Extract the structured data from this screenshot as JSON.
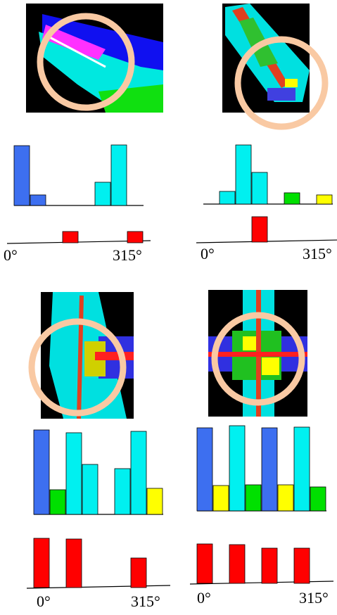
{
  "bar_colors": {
    "blue": "#3d6ff0",
    "cyan": "#00f0f0",
    "green": "#00e000",
    "yellow": "#ffff00",
    "red": "#ff0000"
  },
  "panels": [
    {
      "label_start": "0°",
      "label_end": "315°",
      "orientation_hist": {
        "heights": [
          85,
          15,
          0,
          0,
          0,
          33,
          86,
          0
        ],
        "colors": [
          "blue",
          "blue",
          "blue",
          "cyan",
          "cyan",
          "cyan",
          "cyan",
          "cyan"
        ]
      },
      "red_hist": {
        "heights": [
          0,
          0,
          0,
          16,
          0,
          0,
          0,
          16
        ]
      }
    },
    {
      "label_start": "0°",
      "label_end": "315°",
      "orientation_hist": {
        "heights": [
          0,
          18,
          84,
          45,
          0,
          16,
          0,
          13
        ],
        "colors": [
          "cyan",
          "cyan",
          "cyan",
          "cyan",
          "cyan",
          "green",
          "green",
          "yellow"
        ]
      },
      "red_hist": {
        "heights": [
          0,
          0,
          0,
          36,
          0,
          0,
          0,
          0
        ]
      }
    },
    {
      "label_start": "0°",
      "label_end": "315°",
      "orientation_hist": {
        "heights": [
          120,
          35,
          116,
          71,
          0,
          65,
          118,
          37
        ],
        "colors": [
          "blue",
          "green",
          "cyan",
          "cyan",
          "cyan",
          "cyan",
          "cyan",
          "yellow"
        ]
      },
      "red_hist": {
        "heights": [
          70,
          0,
          69,
          0,
          0,
          0,
          42,
          0
        ]
      }
    },
    {
      "label_start": "0°",
      "label_end": "315°",
      "orientation_hist": {
        "heights": [
          118,
          36,
          121,
          37,
          118,
          37,
          119,
          34
        ],
        "colors": [
          "blue",
          "yellow",
          "cyan",
          "green",
          "blue",
          "yellow",
          "cyan",
          "green"
        ]
      },
      "red_hist": {
        "heights": [
          56,
          0,
          55,
          0,
          50,
          0,
          50,
          0
        ]
      }
    }
  ]
}
